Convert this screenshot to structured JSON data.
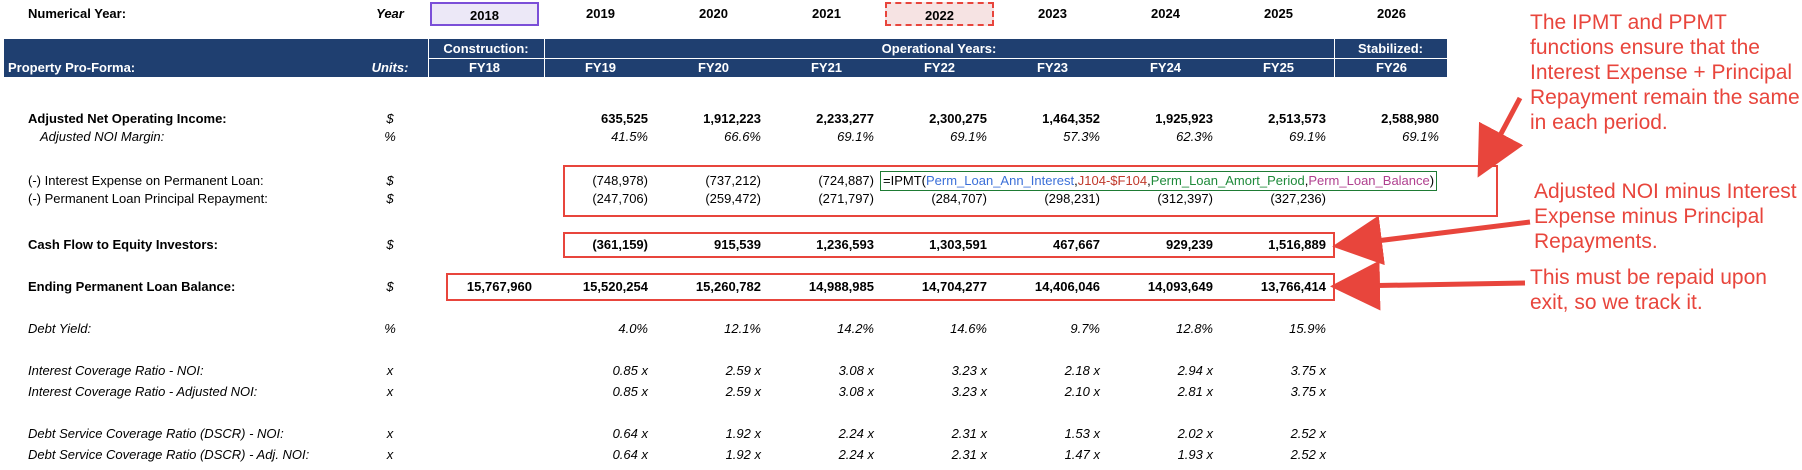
{
  "numerical_year": {
    "label": "Numerical Year:",
    "unit": "Year",
    "years": [
      "2018",
      "2019",
      "2020",
      "2021",
      "2022",
      "2023",
      "2024",
      "2025",
      "2026"
    ]
  },
  "header": {
    "construction": "Construction:",
    "operational": "Operational Years:",
    "stabilized": "Stabilized:",
    "section_title": "Property Pro-Forma:",
    "units": "Units:",
    "fiscal_years": [
      "FY18",
      "FY19",
      "FY20",
      "FY21",
      "FY22",
      "FY23",
      "FY24",
      "FY25",
      "FY26"
    ]
  },
  "rows": {
    "adj_noi": {
      "label": "Adjusted Net Operating Income:",
      "unit": "$",
      "values": [
        "",
        "635,525",
        "1,912,223",
        "2,233,277",
        "2,300,275",
        "1,464,352",
        "1,925,923",
        "2,513,573",
        "2,588,980"
      ]
    },
    "adj_noi_margin": {
      "label": "Adjusted NOI Margin:",
      "unit": "%",
      "values": [
        "",
        "41.5%",
        "66.6%",
        "69.1%",
        "69.1%",
        "57.3%",
        "62.3%",
        "69.1%",
        "69.1%"
      ]
    },
    "interest_expense": {
      "label": "(-) Interest Expense on Permanent Loan:",
      "unit": "$",
      "values": [
        "",
        "(748,978)",
        "(737,212)",
        "(724,887)",
        "",
        "",
        "",
        "",
        ""
      ]
    },
    "principal_repayment": {
      "label": "(-) Permanent Loan Principal Repayment:",
      "unit": "$",
      "values": [
        "",
        "(247,706)",
        "(259,472)",
        "(271,797)",
        "(284,707)",
        "(298,231)",
        "(312,397)",
        "(327,236)",
        ""
      ]
    },
    "cash_flow": {
      "label": "Cash Flow to Equity Investors:",
      "unit": "$",
      "values": [
        "",
        "(361,159)",
        "915,539",
        "1,236,593",
        "1,303,591",
        "467,667",
        "929,239",
        "1,516,889",
        ""
      ]
    },
    "ending_balance": {
      "label": "Ending Permanent Loan Balance:",
      "unit": "$",
      "values": [
        "15,767,960",
        "15,520,254",
        "15,260,782",
        "14,988,985",
        "14,704,277",
        "14,406,046",
        "14,093,649",
        "13,766,414",
        ""
      ]
    },
    "debt_yield": {
      "label": "Debt Yield:",
      "unit": "%",
      "values": [
        "",
        "4.0%",
        "12.1%",
        "14.2%",
        "14.6%",
        "9.7%",
        "12.8%",
        "15.9%",
        ""
      ]
    },
    "icr_noi": {
      "label": "Interest Coverage Ratio - NOI:",
      "unit": "x",
      "values": [
        "",
        "0.85 x",
        "2.59 x",
        "3.08 x",
        "3.23 x",
        "2.18 x",
        "2.94 x",
        "3.75 x",
        ""
      ]
    },
    "icr_adj_noi": {
      "label": "Interest Coverage Ratio - Adjusted NOI:",
      "unit": "x",
      "values": [
        "",
        "0.85 x",
        "2.59 x",
        "3.08 x",
        "3.23 x",
        "2.10 x",
        "2.81 x",
        "3.75 x",
        ""
      ]
    },
    "dscr_noi": {
      "label": "Debt Service Coverage Ratio (DSCR) - NOI:",
      "unit": "x",
      "values": [
        "",
        "0.64 x",
        "1.92 x",
        "2.24 x",
        "2.31 x",
        "1.53 x",
        "2.02 x",
        "2.52 x",
        ""
      ]
    },
    "dscr_adj_noi": {
      "label": "Debt Service Coverage Ratio (DSCR) - Adj. NOI:",
      "unit": "x",
      "values": [
        "",
        "0.64 x",
        "1.92 x",
        "2.24 x",
        "2.31 x",
        "1.47 x",
        "1.93 x",
        "2.52 x",
        ""
      ]
    }
  },
  "formula": {
    "prefix": "=IPMT(",
    "arg1": "Perm_Loan_Ann_Interest",
    "sep1": ",",
    "arg2": "J104-$F104",
    "sep2": ",",
    "arg3": "Perm_Loan_Amort_Period",
    "sep3": ",",
    "arg4": "Perm_Loan_Balance",
    "suffix": ")"
  },
  "callouts": {
    "ipmt_ppmt": "The IPMT and PPMT functions ensure that the Interest Expense + Principal Repayment remain the same in each period.",
    "adjusted_noi": "Adjusted NOI minus Interest Expense minus Principal Repayments.",
    "repaid": "This must be repaid upon exit, so we track it."
  },
  "colors": {
    "header_bg": "#1f3f70",
    "callout_red": "#e8453c",
    "formula_arg1": "#3b6fd8",
    "formula_arg2": "#c0392b",
    "formula_arg3": "#1e8a3a",
    "formula_arg4": "#b0408f",
    "highlight_2018": "#7b4fd8",
    "highlight_2022": "#e8453c"
  }
}
